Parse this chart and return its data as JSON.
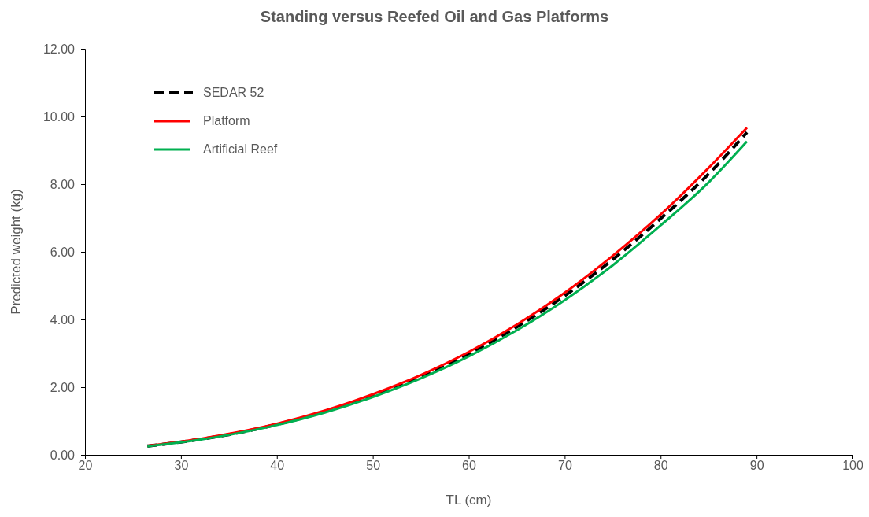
{
  "chart_data": {
    "type": "line",
    "title": "Standing versus Reefed Oil and Gas Platforms",
    "xlabel": "TL (cm)",
    "ylabel": "Predicted weight (kg)",
    "xlim": [
      20,
      100
    ],
    "xticks": [
      20,
      30,
      40,
      50,
      60,
      70,
      80,
      90,
      100
    ],
    "ylim": [
      0,
      12
    ],
    "yticks": [
      {
        "value": 0,
        "label": "0.00"
      },
      {
        "value": 2,
        "label": "2.00"
      },
      {
        "value": 4,
        "label": "4.00"
      },
      {
        "value": 6,
        "label": "6.00"
      },
      {
        "value": 8,
        "label": "8.00"
      },
      {
        "value": 10,
        "label": "10.00"
      },
      {
        "value": 12,
        "label": "12.00"
      }
    ],
    "x": [
      26.5,
      30,
      35,
      40,
      45,
      50,
      55,
      60,
      65,
      70,
      75,
      80,
      85,
      89
    ],
    "grid": false,
    "legend": "top left",
    "marker": "none",
    "series": [
      {
        "name": "SEDAR 52",
        "color": "#000000",
        "line_style": "dashed",
        "values": [
          0.26,
          0.38,
          0.6,
          0.9,
          1.28,
          1.75,
          2.3,
          2.98,
          3.78,
          4.7,
          5.77,
          6.98,
          8.3,
          9.53
        ]
      },
      {
        "name": "Platform",
        "color": "#ff0000",
        "line_style": "solid",
        "values": [
          0.27,
          0.39,
          0.62,
          0.92,
          1.31,
          1.79,
          2.36,
          3.04,
          3.85,
          4.79,
          5.88,
          7.1,
          8.48,
          9.67
        ]
      },
      {
        "name": "Artificial Reef",
        "color": "#00b050",
        "line_style": "solid",
        "values": [
          0.25,
          0.37,
          0.59,
          0.88,
          1.25,
          1.71,
          2.26,
          2.91,
          3.68,
          4.57,
          5.6,
          6.78,
          8.05,
          9.26
        ]
      }
    ]
  }
}
